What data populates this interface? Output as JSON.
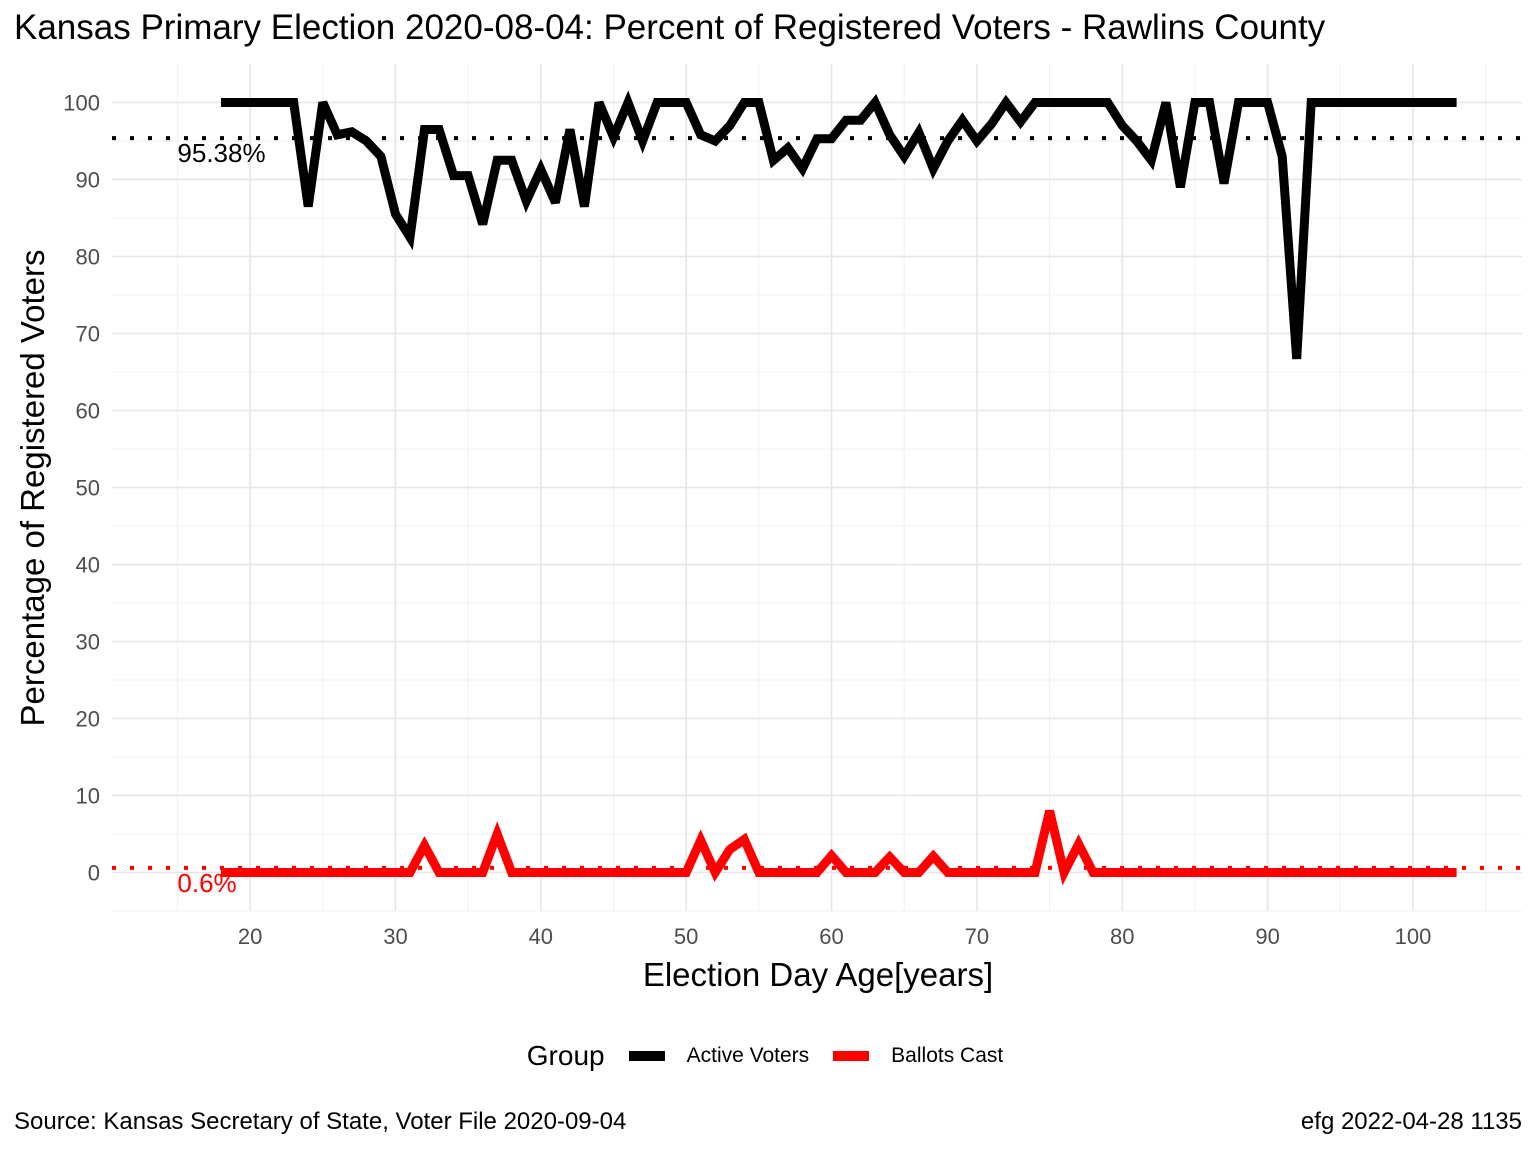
{
  "chart_data": {
    "type": "line",
    "title": "Kansas Primary Election 2020-08-04:  Percent of Registered Voters - Rawlins County",
    "xlabel": "Election Day Age[years]",
    "ylabel": "Percentage of Registered Voters",
    "xlim": [
      10.5,
      107.5
    ],
    "ylim": [
      -5,
      105
    ],
    "xticks": [
      20,
      30,
      40,
      50,
      60,
      70,
      80,
      90,
      100
    ],
    "yticks": [
      0,
      10,
      20,
      30,
      40,
      50,
      60,
      70,
      80,
      90,
      100
    ],
    "grid": true,
    "legend_position": "bottom",
    "legend_title": "Group",
    "series": [
      {
        "name": "Active Voters",
        "color": "#000000",
        "x": [
          18,
          19,
          20,
          21,
          22,
          23,
          24,
          25,
          26,
          27,
          28,
          29,
          30,
          31,
          32,
          33,
          34,
          35,
          36,
          37,
          38,
          39,
          40,
          41,
          42,
          43,
          44,
          45,
          46,
          47,
          48,
          49,
          50,
          51,
          52,
          53,
          54,
          55,
          56,
          57,
          58,
          59,
          60,
          61,
          62,
          63,
          64,
          65,
          66,
          67,
          68,
          69,
          70,
          71,
          72,
          73,
          74,
          75,
          76,
          77,
          78,
          79,
          80,
          81,
          82,
          83,
          84,
          85,
          86,
          87,
          88,
          89,
          90,
          91,
          92,
          93,
          94,
          95,
          96,
          97,
          98,
          99,
          100,
          101,
          102,
          103
        ],
        "y": [
          100,
          100,
          100,
          100,
          100,
          100,
          86.5,
          100,
          95.8,
          96.2,
          95,
          93,
          85.5,
          82.5,
          96.5,
          96.5,
          90.5,
          90.5,
          84.2,
          92.5,
          92.5,
          87.2,
          91.3,
          87,
          96.5,
          86.5,
          100,
          95.5,
          100,
          95,
          100,
          100,
          100,
          95.8,
          95,
          97,
          100,
          100,
          92.5,
          94.1,
          91.4,
          95.3,
          95.3,
          97.7,
          97.7,
          100,
          95.8,
          93,
          96.1,
          91.4,
          95,
          97.7,
          95,
          97.2,
          100,
          97.5,
          100,
          100,
          100,
          100,
          100,
          100,
          97,
          95,
          92.5,
          100,
          89,
          100,
          100,
          89.5,
          100,
          100,
          100,
          93,
          66.7,
          100,
          100,
          100,
          100,
          100,
          100,
          100,
          100,
          100,
          100,
          100
        ]
      },
      {
        "name": "Ballots Cast",
        "color": "#ff0000",
        "x": [
          18,
          19,
          20,
          21,
          22,
          23,
          24,
          25,
          26,
          27,
          28,
          29,
          30,
          31,
          32,
          33,
          34,
          35,
          36,
          37,
          38,
          39,
          40,
          41,
          42,
          43,
          44,
          45,
          46,
          47,
          48,
          49,
          50,
          51,
          52,
          53,
          54,
          55,
          56,
          57,
          58,
          59,
          60,
          61,
          62,
          63,
          64,
          65,
          66,
          67,
          68,
          69,
          70,
          71,
          72,
          73,
          74,
          75,
          76,
          77,
          78,
          79,
          80,
          81,
          82,
          83,
          84,
          85,
          86,
          87,
          88,
          89,
          90,
          91,
          92,
          93,
          94,
          95,
          96,
          97,
          98,
          99,
          100,
          101,
          102,
          103
        ],
        "y": [
          0,
          0,
          0,
          0,
          0,
          0,
          0,
          0,
          0,
          0,
          0,
          0,
          0,
          0,
          3.5,
          0,
          0,
          0,
          0,
          5,
          0,
          0,
          0,
          0,
          0,
          0,
          0,
          0,
          0,
          0,
          0,
          0,
          0,
          4.2,
          0,
          3,
          4.3,
          0,
          0,
          0,
          0,
          0,
          2.2,
          0,
          0,
          0,
          2,
          0,
          0,
          2.1,
          0,
          0,
          0,
          0,
          0,
          0,
          0,
          8,
          0,
          3.7,
          0,
          0,
          0,
          0,
          0,
          0,
          0,
          0,
          0,
          0,
          0,
          0,
          0,
          0,
          0,
          0,
          0,
          0,
          0,
          0,
          0,
          0,
          0,
          0,
          0,
          0
        ]
      }
    ],
    "reference_lines": [
      {
        "value": 95.38,
        "label": "95.38%",
        "color": "#000000"
      },
      {
        "value": 0.6,
        "label": "0.6%",
        "color": "#ff0000"
      }
    ]
  },
  "legend": {
    "title": "Group",
    "items": [
      {
        "label": "Active Voters",
        "color": "#000000"
      },
      {
        "label": "Ballots Cast",
        "color": "#ff0000"
      }
    ]
  },
  "captions": {
    "source": "Source:  Kansas Secretary of State, Voter File  2020-09-04",
    "author": "efg 2022-04-28 1135"
  }
}
